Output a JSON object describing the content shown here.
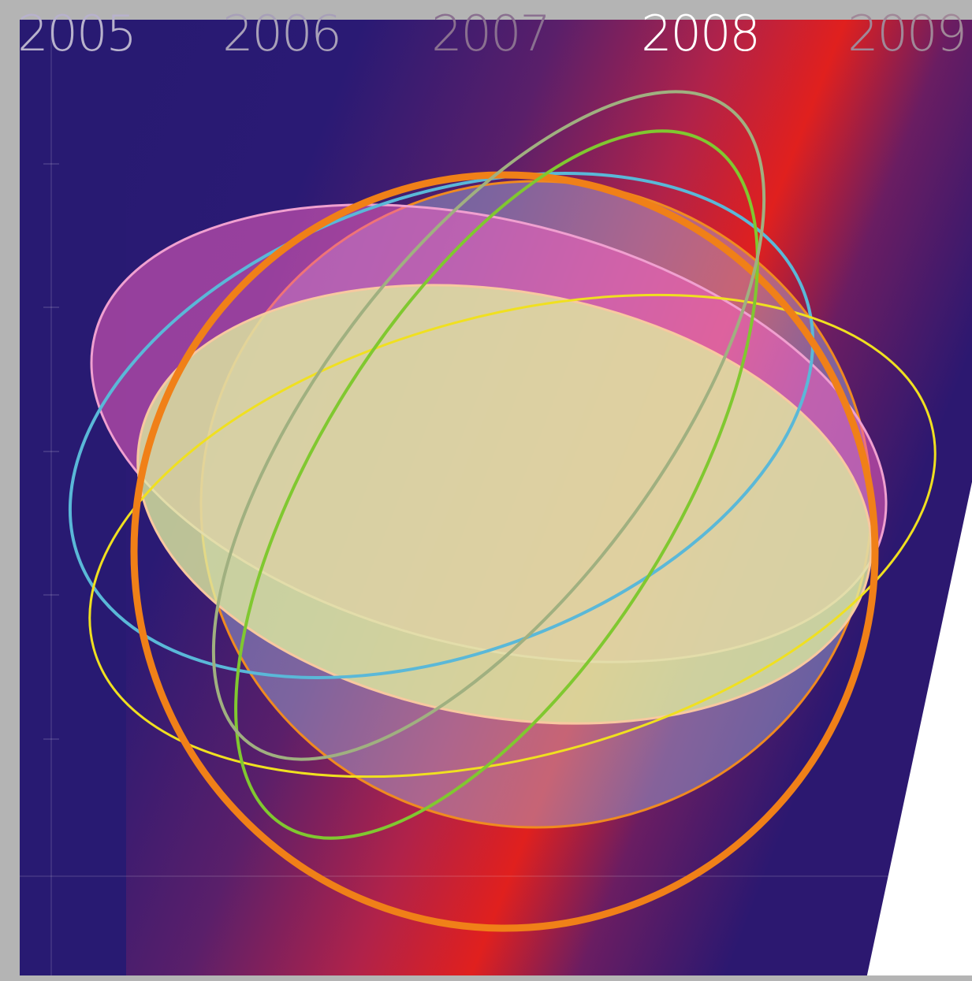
{
  "years": [
    "2005",
    "2006",
    "2007",
    "2008",
    "2009"
  ]
}
